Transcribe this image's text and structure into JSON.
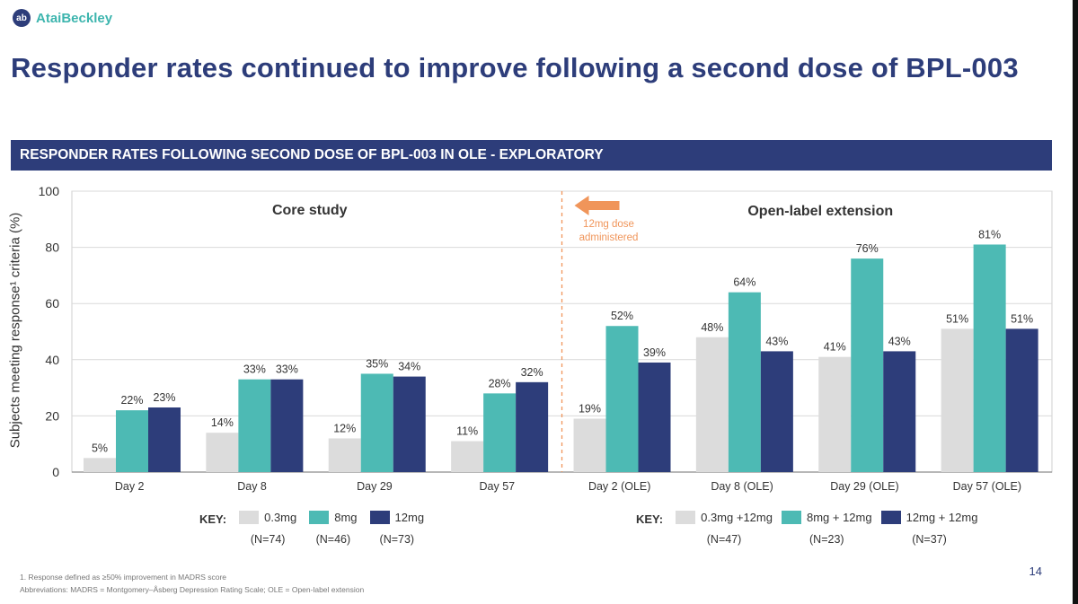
{
  "brand": {
    "logo_mark": "ab",
    "name": "AtaiBeckley"
  },
  "title": "Responder rates continued to improve following a second dose of BPL-003",
  "banner": "RESPONDER RATES FOLLOWING SECOND DOSE OF BPL-003 IN OLE - EXPLORATORY",
  "chart_data": {
    "type": "bar",
    "ylabel": "Subjects meeting response¹ criteria (%)",
    "ylim": [
      0,
      100
    ],
    "yticks": [
      0,
      20,
      40,
      60,
      80,
      100
    ],
    "categories": [
      "Day 2",
      "Day 8",
      "Day 29",
      "Day 57",
      "Day 2 (OLE)",
      "Day 8 (OLE)",
      "Day 29 (OLE)",
      "Day 57 (OLE)"
    ],
    "series": [
      {
        "name": "0.3mg / 0.3mg +12mg",
        "color": "#dcdcdc",
        "values": [
          5,
          14,
          12,
          11,
          19,
          48,
          41,
          51
        ]
      },
      {
        "name": "8mg / 8mg + 12mg",
        "color": "#4dbab4",
        "values": [
          22,
          33,
          35,
          28,
          52,
          64,
          76,
          81
        ]
      },
      {
        "name": "12mg / 12mg + 12mg",
        "color": "#2d3d7a",
        "values": [
          23,
          33,
          34,
          32,
          39,
          43,
          43,
          51
        ]
      }
    ],
    "value_labels": [
      [
        "5%",
        "14%",
        "12%",
        "11%",
        "19%",
        "48%",
        "41%",
        "51%"
      ],
      [
        "22%",
        "33%",
        "35%",
        "28%",
        "52%",
        "64%",
        "76%",
        "81%"
      ],
      [
        "23%",
        "33%",
        "34%",
        "32%",
        "39%",
        "43%",
        "43%",
        "51%"
      ]
    ],
    "section_labels": [
      "Core study",
      "Open-label extension"
    ],
    "annotation": {
      "line1": "12mg dose",
      "line2": "administered",
      "color": "#f0955a"
    }
  },
  "key_core": {
    "label": "KEY:",
    "items": [
      {
        "name": "0.3mg",
        "n": "(N=74)",
        "color": "#dcdcdc"
      },
      {
        "name": "8mg",
        "n": "(N=46)",
        "color": "#4dbab4"
      },
      {
        "name": "12mg",
        "n": "(N=73)",
        "color": "#2d3d7a"
      }
    ]
  },
  "key_ole": {
    "label": "KEY:",
    "items": [
      {
        "name": "0.3mg +12mg",
        "n": "(N=47)",
        "color": "#dcdcdc"
      },
      {
        "name": "8mg + 12mg",
        "n": "(N=23)",
        "color": "#4dbab4"
      },
      {
        "name": "12mg + 12mg",
        "n": "(N=37)",
        "color": "#2d3d7a"
      }
    ]
  },
  "footnotes": {
    "line1": "1. Response defined as ≥50% improvement in MADRS score",
    "line2": "Abbreviations: MADRS = Montgomery–Åsberg Depression Rating Scale; OLE = Open-label extension"
  },
  "page_number": "14"
}
